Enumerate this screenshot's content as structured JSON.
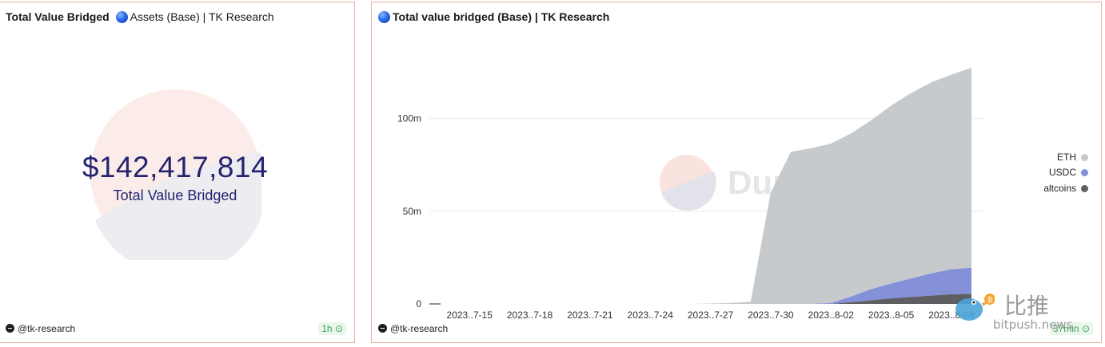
{
  "left_panel": {
    "title_bold": "Total Value Bridged",
    "title_rest": "Assets (Base) | TK Research",
    "counter_value": "$142,417,814",
    "counter_label": "Total Value Bridged",
    "footer_user": "@tk-research",
    "refresh_badge": "1h"
  },
  "right_panel": {
    "title": "Total value bridged (Base) | TK Research",
    "footer_user": "@tk-research",
    "refresh_badge": "37min",
    "watermark": "Dune"
  },
  "overlay": {
    "brand_cn": "比推",
    "brand_url": "bitpush.news"
  },
  "colors": {
    "eth": "#c6cacd",
    "usdc": "#8491d9",
    "altcoins": "#5f5f63",
    "panel_border": "#eab0a3",
    "counter_text": "#242470",
    "badge_green": "#3f9f56"
  },
  "chart_data": {
    "type": "area",
    "stacked": true,
    "title": "Total value bridged (Base) | TK Research",
    "x": [
      "2023-07-13",
      "2023-07-14",
      "2023-07-15",
      "2023-07-16",
      "2023-07-17",
      "2023-07-18",
      "2023-07-19",
      "2023-07-20",
      "2023-07-21",
      "2023-07-22",
      "2023-07-23",
      "2023-07-24",
      "2023-07-25",
      "2023-07-26",
      "2023-07-27",
      "2023-07-28",
      "2023-07-29",
      "2023-07-30",
      "2023-07-31",
      "2023-08-01",
      "2023-08-02",
      "2023-08-03",
      "2023-08-04",
      "2023-08-05",
      "2023-08-06",
      "2023-08-07",
      "2023-08-08",
      "2023-08-09"
    ],
    "xticks": [
      "2023..7-15",
      "2023..7-18",
      "2023..7-21",
      "2023..7-24",
      "2023..7-27",
      "2023..7-30",
      "2023..8-02",
      "2023..8-05",
      "2023..8-08"
    ],
    "ylim": [
      0,
      142000000
    ],
    "yticks": [
      {
        "value": 0,
        "label": "0"
      },
      {
        "value": 50000000,
        "label": "50m"
      },
      {
        "value": 100000000,
        "label": "100m"
      }
    ],
    "grid": true,
    "legend_position": "right",
    "series": [
      {
        "name": "altcoins",
        "values": [
          0,
          0,
          0,
          0,
          0,
          0,
          0,
          0,
          0,
          0,
          0,
          0,
          0,
          0,
          0,
          0,
          0,
          0,
          0,
          0,
          0,
          1000000,
          2000000,
          3000000,
          3800000,
          4500000,
          5200000,
          5500000
        ]
      },
      {
        "name": "USDC",
        "values": [
          0,
          0,
          0,
          0,
          0,
          0,
          0,
          0,
          0,
          0,
          0,
          0,
          0,
          0,
          0,
          0,
          0,
          0,
          0,
          0,
          500000,
          3000000,
          6000000,
          8000000,
          10000000,
          12000000,
          13500000,
          14000000
        ]
      },
      {
        "name": "ETH",
        "values": [
          0,
          0,
          0,
          0,
          0,
          0,
          0,
          0,
          0,
          0,
          0,
          0,
          0,
          0,
          200000,
          500000,
          1200000,
          60000000,
          82000000,
          84000000,
          86000000,
          88000000,
          91000000,
          96000000,
          100000000,
          103000000,
          105000000,
          108000000
        ]
      }
    ]
  }
}
